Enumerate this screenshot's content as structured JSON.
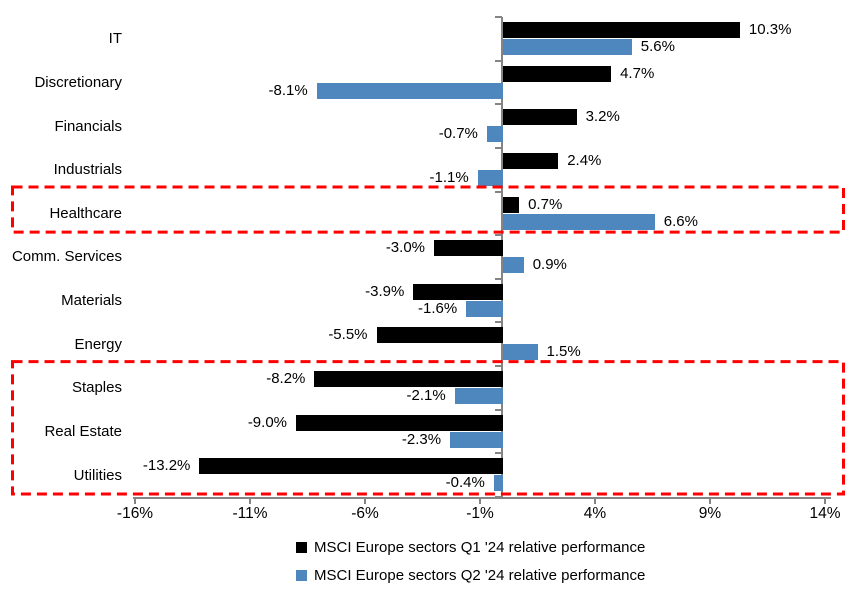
{
  "chart_data": {
    "type": "bar",
    "orientation": "horizontal",
    "categories": [
      "IT",
      "Discretionary",
      "Financials",
      "Industrials",
      "Healthcare",
      "Comm. Services",
      "Materials",
      "Energy",
      "Staples",
      "Real Estate",
      "Utilities"
    ],
    "series": [
      {
        "name": "MSCI Europe sectors Q1 '24 relative performance",
        "color": "#000000",
        "values": [
          10.3,
          4.7,
          3.2,
          2.4,
          0.7,
          -3.0,
          -3.9,
          -5.5,
          -8.2,
          -9.0,
          -13.2
        ],
        "labels": [
          "10.3%",
          "4.7%",
          "3.2%",
          "2.4%",
          "0.7%",
          "-3.0%",
          "-3.9%",
          "-5.5%",
          "-8.2%",
          "-9.0%",
          "-13.2%"
        ]
      },
      {
        "name": "MSCI Europe sectors Q2 '24 relative performance",
        "color": "#4E86BE",
        "values": [
          5.6,
          -8.1,
          -0.7,
          -1.1,
          6.6,
          0.9,
          -1.6,
          1.5,
          -2.1,
          -2.3,
          -0.4
        ],
        "labels": [
          "5.6%",
          "-8.1%",
          "-0.7%",
          "-1.1%",
          "6.6%",
          "0.9%",
          "-1.6%",
          "1.5%",
          "-2.1%",
          "-2.3%",
          "-0.4%"
        ]
      }
    ],
    "x_axis": {
      "min": -16,
      "max": 14,
      "tick_step": 5,
      "tick_values": [
        -16,
        -11,
        -6,
        -1,
        4,
        9,
        14
      ],
      "tick_labels": [
        "-16%",
        "-11%",
        "-6%",
        "-1%",
        "4%",
        "9%",
        "14%"
      ]
    },
    "grid": false,
    "legend_position": "bottom",
    "highlight_color": "#FF0000",
    "highlights": [
      {
        "name": "healthcare-highlight",
        "categories": [
          "Healthcare"
        ]
      },
      {
        "name": "defensive-sectors-highlight",
        "categories": [
          "Staples",
          "Real Estate",
          "Utilities"
        ]
      }
    ],
    "axis_color": "#848484",
    "background_color": "#FFFFFF"
  }
}
